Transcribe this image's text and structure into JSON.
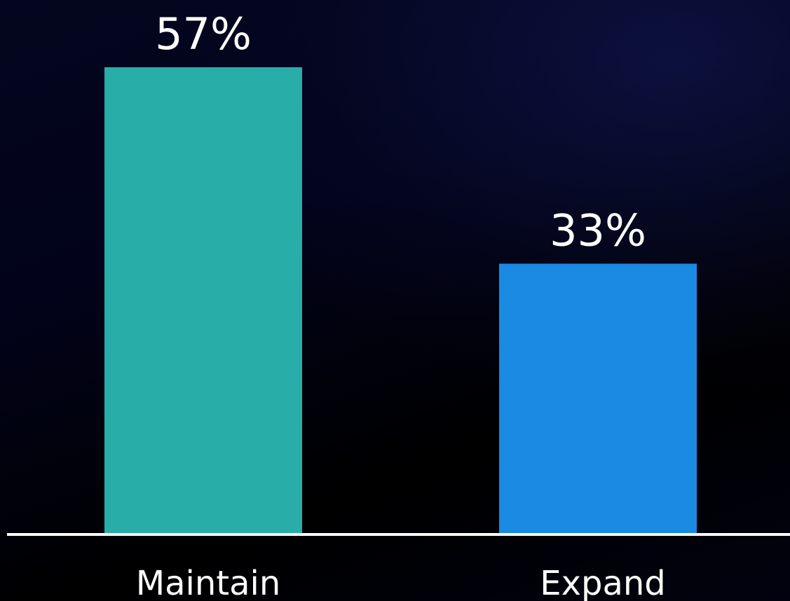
{
  "chart_data": {
    "type": "bar",
    "categories": [
      "Maintain",
      "Expand"
    ],
    "values": [
      57,
      33
    ],
    "value_labels": [
      "57%",
      "33%"
    ],
    "colors": [
      "#28ada9",
      "#1a8ae3"
    ],
    "ylim": [
      0,
      57
    ],
    "grid": false,
    "axis_color": "#ffffff",
    "background": "#000000"
  }
}
